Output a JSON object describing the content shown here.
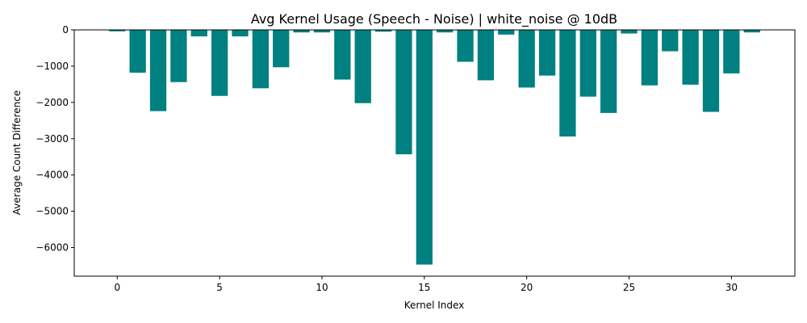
{
  "chart_data": {
    "type": "bar",
    "title": "Avg Kernel Usage (Speech - Noise) | white_noise @ 10dB",
    "xlabel": "Kernel Index",
    "ylabel": "Average Count Difference",
    "x": [
      0,
      1,
      2,
      3,
      4,
      5,
      6,
      7,
      8,
      9,
      10,
      11,
      12,
      13,
      14,
      15,
      16,
      17,
      18,
      19,
      20,
      21,
      22,
      23,
      24,
      25,
      26,
      27,
      28,
      29,
      30,
      31
    ],
    "values": [
      -40,
      -1180,
      -2240,
      -1440,
      -180,
      -1820,
      -180,
      -1610,
      -1030,
      -70,
      -70,
      -1370,
      -2020,
      -50,
      -3430,
      -6470,
      -70,
      -880,
      -1390,
      -130,
      -1590,
      -1260,
      -2940,
      -1840,
      -2290,
      -100,
      -1530,
      -590,
      -1510,
      -2260,
      -1200,
      -70
    ],
    "xticks": [
      0,
      5,
      10,
      15,
      20,
      25,
      30
    ],
    "yticks": [
      0,
      -1000,
      -2000,
      -3000,
      -4000,
      -5000,
      -6000
    ],
    "xlim": [
      -2.1,
      33.1
    ],
    "ylim": [
      -6790,
      0
    ],
    "bar_color": "#008080",
    "grid": false,
    "legend": false
  }
}
